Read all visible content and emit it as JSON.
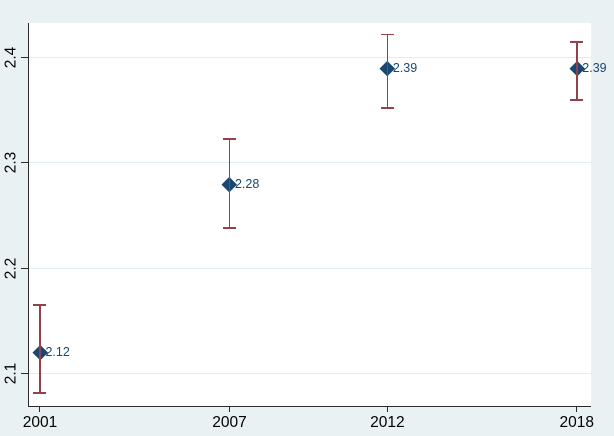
{
  "chart_data": {
    "type": "scatter",
    "title": "",
    "xlabel": "",
    "ylabel": "",
    "categories": [
      "2001",
      "2007",
      "2012",
      "2018"
    ],
    "x": [
      2001,
      2007,
      2012,
      2018
    ],
    "values": [
      2.12,
      2.28,
      2.39,
      2.39
    ],
    "point_labels": [
      "2.12",
      "2.28",
      "2.39",
      "2.39"
    ],
    "ci_low": [
      2.081,
      2.238,
      2.352,
      2.36
    ],
    "ci_high": [
      2.165,
      2.323,
      2.422,
      2.415
    ],
    "xlim": [
      2000.62,
      2018.45
    ],
    "ylim": [
      2.068,
      2.433
    ],
    "yticks": [
      2.1,
      2.2,
      2.3,
      2.4
    ],
    "ytick_labels": [
      "2.1",
      "2.2",
      "2.3",
      "2.4"
    ],
    "grid": true,
    "legend": "none",
    "marker": "diamond",
    "colors": {
      "background": "#e9f1f2",
      "plot_background": "#ffffff",
      "gridline": "#e2edf3",
      "axis": "#2b2b2b",
      "tick_text": "#000000",
      "marker": "#1a476f",
      "error_bar": "#94404d",
      "point_label_text": "#1a476f"
    }
  }
}
